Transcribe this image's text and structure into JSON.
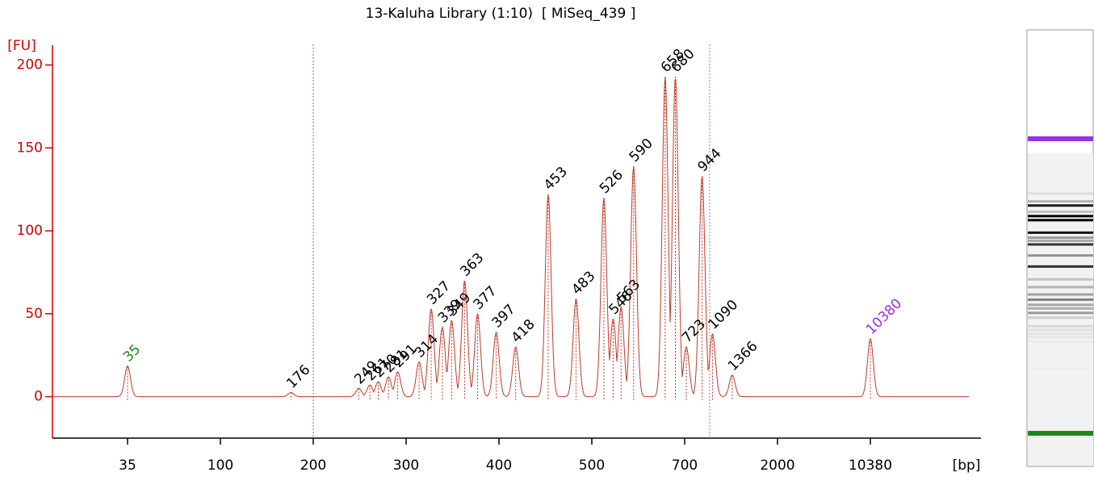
{
  "chart_data": {
    "type": "electropherogram",
    "title": "13-Kaluha Library (1:10)  [ MiSeq_439 ]",
    "ylabel": "[FU]",
    "xlabel": "[bp]",
    "x": [
      35,
      176,
      249,
      261,
      270,
      281,
      291,
      314,
      327,
      339,
      349,
      363,
      377,
      397,
      418,
      453,
      483,
      526,
      546,
      563,
      590,
      658,
      680,
      723,
      944,
      1090,
      1366,
      10380
    ],
    "values": [
      18.5,
      2.5,
      5,
      7,
      9,
      12,
      15,
      21,
      53,
      42,
      46,
      70,
      50,
      39,
      30,
      122,
      59,
      120,
      47,
      54,
      139,
      193,
      193,
      30,
      133,
      38,
      13,
      35
    ],
    "color": "#c0392b",
    "lower_marker_color": "#1a8a1a",
    "upper_marker_color": "#9b30e0",
    "region": [
      200,
      1050
    ],
    "xticks": [
      35,
      100,
      200,
      300,
      400,
      500,
      700,
      2000,
      10380
    ],
    "ylim": [
      -25,
      210
    ],
    "yticks": [
      0,
      50,
      100,
      150,
      200
    ]
  }
}
